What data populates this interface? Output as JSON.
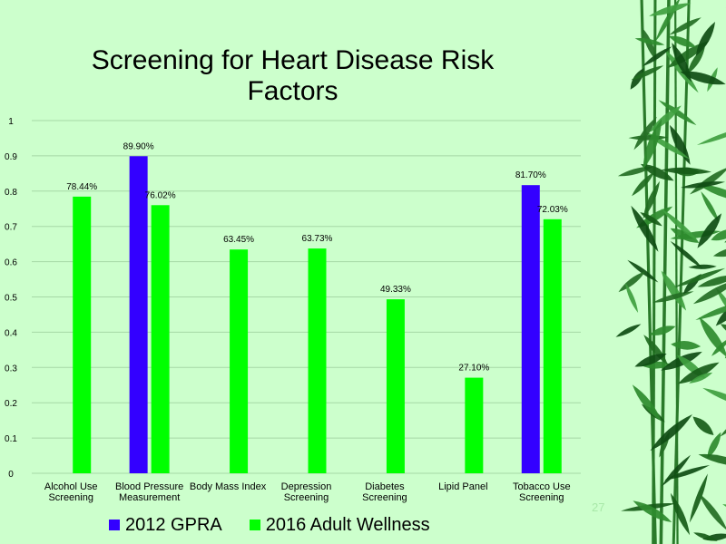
{
  "slide": {
    "number": "27",
    "background": "#ccffcc"
  },
  "decoration": {
    "right_border": "bamboo-leaves-image"
  },
  "chart_data": {
    "type": "bar",
    "title": "Screening for Heart Disease Risk Factors",
    "categories": [
      [
        "Alcohol Use",
        "Screening"
      ],
      [
        "Blood Pressure",
        "Measurement"
      ],
      [
        "Body Mass Index"
      ],
      [
        "Depression",
        "Screening"
      ],
      [
        "Diabetes",
        "Screening"
      ],
      [
        "Lipid Panel"
      ],
      [
        "Tobacco Use",
        "Screening"
      ]
    ],
    "series": [
      {
        "name": "2012 GPRA",
        "color": "#3300ff",
        "values": [
          null,
          0.899,
          null,
          null,
          null,
          null,
          0.817
        ],
        "labels": [
          "",
          "89.90%",
          "",
          "",
          "",
          "",
          "81.70%"
        ]
      },
      {
        "name": "2016 Adult Wellness",
        "color": "#00ff00",
        "values": [
          0.7844,
          0.7602,
          0.6345,
          0.6373,
          0.4933,
          0.271,
          0.7203
        ],
        "labels": [
          "78.44%",
          "76.02%",
          "63.45%",
          "63.73%",
          "49.33%",
          "27.10%",
          "72.03%"
        ]
      }
    ],
    "ylim": [
      0,
      1
    ],
    "yticks": [
      "0",
      "0.1",
      "0.2",
      "0.3",
      "0.4",
      "0.5",
      "0.6",
      "0.7",
      "0.8",
      "0.9",
      "1"
    ],
    "grid": true,
    "legend_position": "bottom"
  }
}
